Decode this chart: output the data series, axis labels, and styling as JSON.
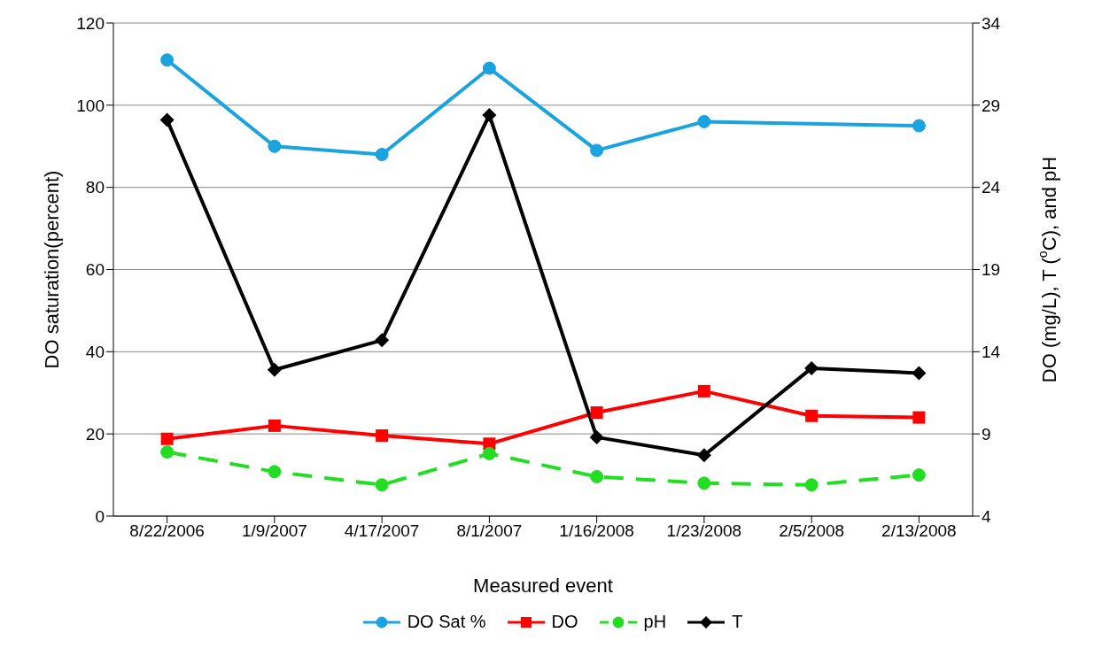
{
  "chart_data": {
    "type": "line",
    "xlabel": "Measured event",
    "ylabel": "DO saturation(percent)",
    "y2label": "DO (mg/L), T ($^{o}$C), and pH",
    "categories": [
      "8/22/2006",
      "1/9/2007",
      "4/17/2007",
      "8/1/2007",
      "1/16/2008",
      "1/23/2008",
      "2/5/2008",
      "2/13/2008"
    ],
    "series": [
      {
        "name": "DO Sat %",
        "color": "#1aa3de",
        "marker": "circle",
        "line_style": "solid",
        "values": [
          111,
          90,
          88,
          109,
          89,
          96,
          null,
          95
        ]
      },
      {
        "name": "DO",
        "color": "#ff0000",
        "marker": "square",
        "line_style": "solid",
        "axis": "y2",
        "values": [
          8.7,
          9.5,
          8.9,
          8.4,
          10.3,
          11.6,
          10.1,
          10.0
        ]
      },
      {
        "name": "pH",
        "color": "#22dd22",
        "marker": "circle",
        "line_style": "dashed",
        "axis": "y2",
        "values": [
          7.9,
          6.7,
          5.9,
          7.8,
          6.4,
          6.0,
          5.9,
          6.5
        ]
      },
      {
        "name": "T",
        "color": "#000000",
        "marker": "diamond",
        "line_style": "solid",
        "axis": "y2",
        "values": [
          28.1,
          12.9,
          14.7,
          28.4,
          8.8,
          7.7,
          13.0,
          12.7
        ]
      }
    ],
    "ylim": [
      0,
      120
    ],
    "yticks": [
      0,
      20,
      40,
      60,
      80,
      100,
      120
    ],
    "y2lim": [
      4,
      34
    ],
    "y2ticks": [
      4,
      9,
      14,
      19,
      24,
      29,
      34
    ],
    "grid": "y",
    "legend": "bottom"
  }
}
